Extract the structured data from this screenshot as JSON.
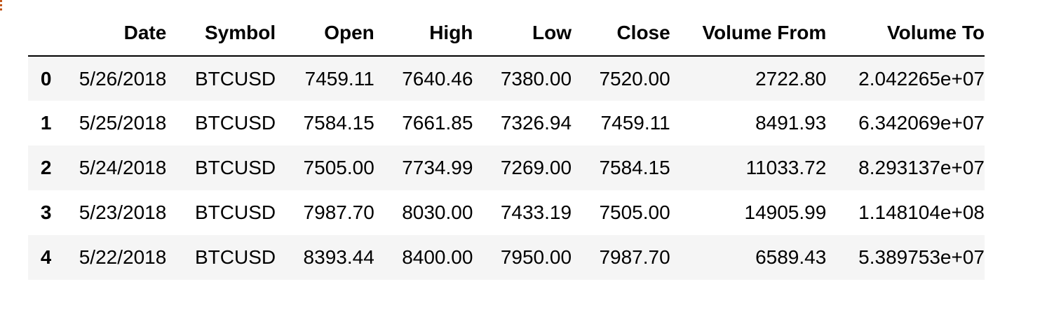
{
  "table": {
    "columns": [
      "",
      "Date",
      "Symbol",
      "Open",
      "High",
      "Low",
      "Close",
      "Volume From",
      "Volume To"
    ],
    "rows": [
      {
        "index": "0",
        "date": "5/26/2018",
        "symbol": "BTCUSD",
        "open": "7459.11",
        "high": "7640.46",
        "low": "7380.00",
        "close": "7520.00",
        "volume_from": "2722.80",
        "volume_to": "2.042265e+07"
      },
      {
        "index": "1",
        "date": "5/25/2018",
        "symbol": "BTCUSD",
        "open": "7584.15",
        "high": "7661.85",
        "low": "7326.94",
        "close": "7459.11",
        "volume_from": "8491.93",
        "volume_to": "6.342069e+07"
      },
      {
        "index": "2",
        "date": "5/24/2018",
        "symbol": "BTCUSD",
        "open": "7505.00",
        "high": "7734.99",
        "low": "7269.00",
        "close": "7584.15",
        "volume_from": "11033.72",
        "volume_to": "8.293137e+07"
      },
      {
        "index": "3",
        "date": "5/23/2018",
        "symbol": "BTCUSD",
        "open": "7987.70",
        "high": "8030.00",
        "low": "7433.19",
        "close": "7505.00",
        "volume_from": "14905.99",
        "volume_to": "1.148104e+08"
      },
      {
        "index": "4",
        "date": "5/22/2018",
        "symbol": "BTCUSD",
        "open": "8393.44",
        "high": "8400.00",
        "low": "7950.00",
        "close": "7987.70",
        "volume_from": "6589.43",
        "volume_to": "5.389753e+07"
      }
    ]
  },
  "colors": {
    "header_rule": "#000000",
    "striped_row": "#f5f5f5",
    "corner_mark": "#c2561a"
  }
}
